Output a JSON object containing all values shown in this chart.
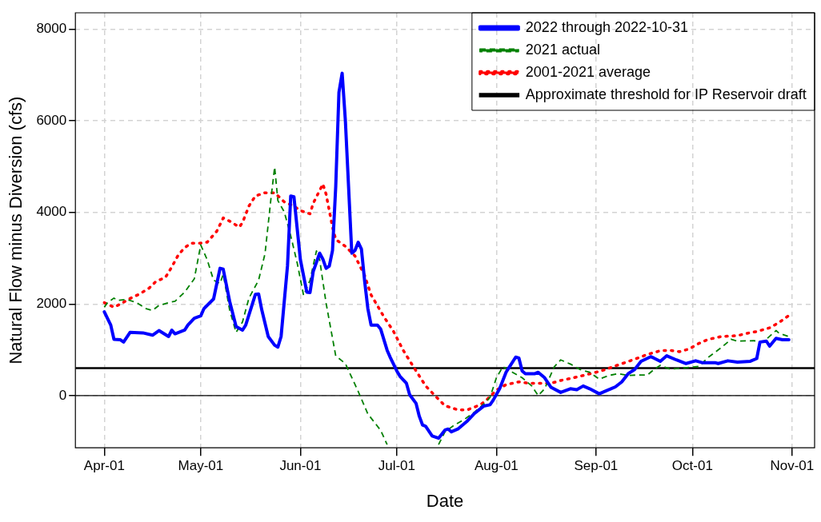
{
  "chart_data": {
    "type": "line",
    "xlabel": "Date",
    "ylabel": "Natural Flow minus Diversion (cfs)",
    "xlim": [
      "2022-03-23",
      "2022-11-08"
    ],
    "ylim": [
      -1140,
      8360
    ],
    "xticks": [
      {
        "value": "2022-04-01",
        "label": "Apr-01"
      },
      {
        "value": "2022-05-01",
        "label": "May-01"
      },
      {
        "value": "2022-06-01",
        "label": "Jun-01"
      },
      {
        "value": "2022-07-01",
        "label": "Jul-01"
      },
      {
        "value": "2022-08-01",
        "label": "Aug-01"
      },
      {
        "value": "2022-09-01",
        "label": "Sep-01"
      },
      {
        "value": "2022-10-01",
        "label": "Oct-01"
      },
      {
        "value": "2022-11-01",
        "label": "Nov-01"
      }
    ],
    "yticks": [
      0,
      2000,
      4000,
      6000,
      8000
    ],
    "grid": true,
    "legend": "top right",
    "marker": "none",
    "ref_lines": [
      {
        "axis": "y",
        "value": 600,
        "label": "Approximate threshold for IP Reservoir draft",
        "color": "#000000",
        "line_style": "solid"
      },
      {
        "axis": "y",
        "value": 0,
        "color": "#000000",
        "line_style": "solid"
      }
    ],
    "series": [
      {
        "name": "2022 through 2022-10-31",
        "color": "#0000ff",
        "line_style": "solid",
        "x": [
          "2022-04-01",
          "2022-04-03",
          "2022-04-04",
          "2022-04-06",
          "2022-04-07",
          "2022-04-09",
          "2022-04-13",
          "2022-04-16",
          "2022-04-18",
          "2022-04-21",
          "2022-04-22",
          "2022-04-23",
          "2022-04-26",
          "2022-04-27",
          "2022-04-29",
          "2022-05-01",
          "2022-05-02",
          "2022-05-05",
          "2022-05-07",
          "2022-05-08",
          "2022-05-10",
          "2022-05-12",
          "2022-05-14",
          "2022-05-15",
          "2022-05-18",
          "2022-05-19",
          "2022-05-20",
          "2022-05-22",
          "2022-05-24",
          "2022-05-25",
          "2022-05-26",
          "2022-05-28",
          "2022-05-29",
          "2022-05-30",
          "2022-06-01",
          "2022-06-03",
          "2022-06-04",
          "2022-06-05",
          "2022-06-07",
          "2022-06-08",
          "2022-06-09",
          "2022-06-10",
          "2022-06-11",
          "2022-06-12",
          "2022-06-13",
          "2022-06-14",
          "2022-06-15",
          "2022-06-16",
          "2022-06-17",
          "2022-06-18",
          "2022-06-19",
          "2022-06-20",
          "2022-06-21",
          "2022-06-22",
          "2022-06-23",
          "2022-06-25",
          "2022-06-26",
          "2022-06-28",
          "2022-06-29",
          "2022-07-01",
          "2022-07-02",
          "2022-07-04",
          "2022-07-05",
          "2022-07-07",
          "2022-07-08",
          "2022-07-09",
          "2022-07-10",
          "2022-07-12",
          "2022-07-14",
          "2022-07-16",
          "2022-07-17",
          "2022-07-18",
          "2022-07-20",
          "2022-07-23",
          "2022-07-25",
          "2022-07-28",
          "2022-07-30",
          "2022-07-31",
          "2022-08-02",
          "2022-08-04",
          "2022-08-07",
          "2022-08-08",
          "2022-08-09",
          "2022-08-10",
          "2022-08-13",
          "2022-08-14",
          "2022-08-16",
          "2022-08-18",
          "2022-08-21",
          "2022-08-24",
          "2022-08-26",
          "2022-08-28",
          "2022-08-30",
          "2022-09-02",
          "2022-09-04",
          "2022-09-07",
          "2022-09-09",
          "2022-09-11",
          "2022-09-13",
          "2022-09-15",
          "2022-09-18",
          "2022-09-19",
          "2022-09-21",
          "2022-09-23",
          "2022-09-26",
          "2022-09-29",
          "2022-10-02",
          "2022-10-04",
          "2022-10-08",
          "2022-10-09",
          "2022-10-12",
          "2022-10-15",
          "2022-10-19",
          "2022-10-21",
          "2022-10-22",
          "2022-10-24",
          "2022-10-25",
          "2022-10-27",
          "2022-10-29",
          "2022-10-31"
        ],
        "values": [
          1830,
          1540,
          1230,
          1220,
          1170,
          1380,
          1370,
          1320,
          1420,
          1290,
          1430,
          1350,
          1430,
          1540,
          1690,
          1740,
          1900,
          2110,
          2780,
          2760,
          2060,
          1510,
          1430,
          1540,
          2210,
          2220,
          1870,
          1290,
          1100,
          1060,
          1290,
          2840,
          4360,
          4340,
          2970,
          2260,
          2250,
          2710,
          3110,
          2980,
          2780,
          2830,
          3170,
          4560,
          6620,
          7040,
          6010,
          4560,
          3110,
          3170,
          3350,
          3200,
          2500,
          1900,
          1540,
          1540,
          1450,
          990,
          830,
          540,
          420,
          270,
          20,
          -170,
          -450,
          -640,
          -670,
          -880,
          -930,
          -750,
          -730,
          -790,
          -730,
          -550,
          -400,
          -230,
          -200,
          -100,
          150,
          510,
          840,
          820,
          540,
          480,
          480,
          510,
          390,
          180,
          70,
          150,
          130,
          210,
          150,
          40,
          100,
          190,
          300,
          480,
          570,
          750,
          850,
          820,
          750,
          870,
          780,
          700,
          760,
          720,
          720,
          700,
          760,
          730,
          750,
          810,
          1170,
          1190,
          1080,
          1250,
          1220,
          1220
        ]
      },
      {
        "name": "2021 actual",
        "color": "#008000",
        "line_style": "dashed",
        "x": [
          "2022-04-01",
          "2022-04-02",
          "2022-04-04",
          "2022-04-05",
          "2022-04-08",
          "2022-04-11",
          "2022-04-14",
          "2022-04-16",
          "2022-04-18",
          "2022-04-21",
          "2022-04-23",
          "2022-04-26",
          "2022-04-29",
          "2022-05-01",
          "2022-05-03",
          "2022-05-05",
          "2022-05-07",
          "2022-05-08",
          "2022-05-10",
          "2022-05-12",
          "2022-05-14",
          "2022-05-16",
          "2022-05-19",
          "2022-05-21",
          "2022-05-23",
          "2022-05-24",
          "2022-05-25",
          "2022-05-27",
          "2022-05-29",
          "2022-05-31",
          "2022-06-02",
          "2022-06-04",
          "2022-06-06",
          "2022-06-07",
          "2022-06-09",
          "2022-06-12",
          "2022-06-15",
          "2022-06-19",
          "2022-06-22",
          "2022-06-26",
          "2022-06-28",
          "2022-07-06",
          "2022-07-14",
          "2022-07-16",
          "2022-07-19",
          "2022-07-22",
          "2022-07-25",
          "2022-07-28",
          "2022-07-30",
          "2022-08-01",
          "2022-08-03",
          "2022-08-06",
          "2022-08-09",
          "2022-08-12",
          "2022-08-14",
          "2022-08-16",
          "2022-08-19",
          "2022-08-21",
          "2022-08-24",
          "2022-08-27",
          "2022-08-30",
          "2022-09-02",
          "2022-09-05",
          "2022-09-08",
          "2022-09-11",
          "2022-09-14",
          "2022-09-17",
          "2022-09-19",
          "2022-09-21",
          "2022-09-24",
          "2022-09-28",
          "2022-10-03",
          "2022-10-06",
          "2022-10-10",
          "2022-10-13",
          "2022-10-15",
          "2022-10-20",
          "2022-10-23",
          "2022-10-27",
          "2022-10-28",
          "2022-10-31"
        ],
        "values": [
          1930,
          2030,
          2130,
          2080,
          2100,
          2030,
          1900,
          1860,
          1970,
          2030,
          2060,
          2260,
          2550,
          3290,
          2970,
          2520,
          2450,
          2650,
          1870,
          1380,
          1610,
          2130,
          2520,
          3100,
          4400,
          4990,
          4260,
          4010,
          3490,
          2900,
          2190,
          2520,
          3160,
          2970,
          2020,
          870,
          700,
          90,
          -400,
          -760,
          -1070,
          null,
          -1070,
          -790,
          -640,
          -520,
          -370,
          -190,
          -40,
          390,
          630,
          510,
          390,
          210,
          0,
          150,
          630,
          780,
          690,
          570,
          510,
          360,
          440,
          480,
          440,
          450,
          450,
          570,
          660,
          580,
          600,
          640,
          840,
          1050,
          1230,
          1190,
          1200,
          1170,
          1420,
          1360,
          1290
        ]
      },
      {
        "name": "2001-2021 average",
        "color": "#ff0000",
        "line_style": "dotted",
        "x": [
          "2022-04-01",
          "2022-04-04",
          "2022-04-06",
          "2022-04-09",
          "2022-04-12",
          "2022-04-15",
          "2022-04-17",
          "2022-04-20",
          "2022-04-22",
          "2022-04-24",
          "2022-04-26",
          "2022-04-28",
          "2022-05-01",
          "2022-05-03",
          "2022-05-06",
          "2022-05-08",
          "2022-05-10",
          "2022-05-13",
          "2022-05-14",
          "2022-05-16",
          "2022-05-18",
          "2022-05-21",
          "2022-05-24",
          "2022-05-27",
          "2022-05-30",
          "2022-06-01",
          "2022-06-04",
          "2022-06-05",
          "2022-06-08",
          "2022-06-09",
          "2022-06-11",
          "2022-06-12",
          "2022-06-15",
          "2022-06-18",
          "2022-06-21",
          "2022-06-23",
          "2022-06-27",
          "2022-06-30",
          "2022-07-03",
          "2022-07-06",
          "2022-07-10",
          "2022-07-13",
          "2022-07-16",
          "2022-07-20",
          "2022-07-23",
          "2022-07-27",
          "2022-07-29",
          "2022-08-01",
          "2022-08-04",
          "2022-08-08",
          "2022-08-11",
          "2022-08-14",
          "2022-08-18",
          "2022-08-21",
          "2022-08-25",
          "2022-08-28",
          "2022-09-01",
          "2022-09-04",
          "2022-09-07",
          "2022-09-10",
          "2022-09-14",
          "2022-09-17",
          "2022-09-21",
          "2022-09-24",
          "2022-09-27",
          "2022-09-30",
          "2022-10-03",
          "2022-10-06",
          "2022-10-10",
          "2022-10-15",
          "2022-10-18",
          "2022-10-21",
          "2022-10-25",
          "2022-10-28",
          "2022-10-31"
        ],
        "values": [
          2030,
          1930,
          2000,
          2120,
          2220,
          2350,
          2490,
          2580,
          2810,
          3070,
          3230,
          3330,
          3330,
          3350,
          3590,
          3880,
          3810,
          3680,
          3780,
          4140,
          4360,
          4430,
          4430,
          4230,
          4140,
          4040,
          3970,
          4200,
          4620,
          4400,
          3680,
          3410,
          3260,
          3050,
          2620,
          2200,
          1720,
          1400,
          990,
          650,
          210,
          -10,
          -220,
          -310,
          -310,
          -200,
          -90,
          120,
          240,
          300,
          270,
          270,
          270,
          330,
          390,
          440,
          510,
          570,
          650,
          720,
          820,
          900,
          980,
          990,
          960,
          1020,
          1140,
          1230,
          1290,
          1310,
          1360,
          1400,
          1480,
          1600,
          1750
        ]
      }
    ]
  }
}
